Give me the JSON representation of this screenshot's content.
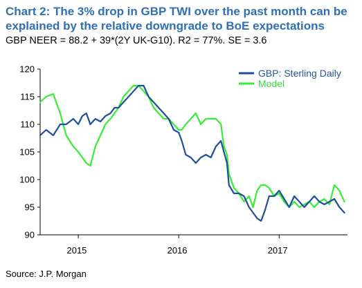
{
  "title": "Chart 2: The 3% drop in GBP TWI over the past month can be explained by the relative downgrade to BoE expectations",
  "subtitle": "GBP NEER = 88.2 + 39*(2Y UK-G10). R2 = 77%. SE = 3.6",
  "source": "Source: J.P. Morgan",
  "colors": {
    "sterling": "#1f4e9b",
    "model": "#33ee33",
    "legend_sterling_text": "#2453a4",
    "legend_model_text": "#33dd33"
  },
  "chart_data": {
    "type": "line",
    "xlabel": "",
    "ylabel": "",
    "ylim": [
      90,
      120
    ],
    "yticks": [
      "90",
      "95",
      "100",
      "105",
      "110",
      "115",
      "120"
    ],
    "xlim": [
      2014.62,
      2017.68
    ],
    "xticks": [
      {
        "label": "2015",
        "x": 2015.0
      },
      {
        "label": "2016",
        "x": 2016.0
      },
      {
        "label": "2017",
        "x": 2017.0
      }
    ],
    "grid": false,
    "legend_position": "top-right",
    "series": [
      {
        "name": "GBP: Sterling Daily",
        "x": [
          2014.62,
          2014.68,
          2014.75,
          2014.82,
          2014.88,
          2014.95,
          2015.0,
          2015.04,
          2015.08,
          2015.12,
          2015.17,
          2015.22,
          2015.27,
          2015.32,
          2015.36,
          2015.4,
          2015.45,
          2015.5,
          2015.55,
          2015.6,
          2015.65,
          2015.7,
          2015.75,
          2015.8,
          2015.85,
          2015.9,
          2015.95,
          2016.0,
          2016.03,
          2016.07,
          2016.12,
          2016.17,
          2016.22,
          2016.27,
          2016.32,
          2016.37,
          2016.42,
          2016.45,
          2016.48,
          2016.5,
          2016.55,
          2016.6,
          2016.65,
          2016.7,
          2016.74,
          2016.78,
          2016.82,
          2016.86,
          2016.9,
          2016.95,
          2017.0,
          2017.05,
          2017.1,
          2017.15,
          2017.2,
          2017.25,
          2017.3,
          2017.35,
          2017.4,
          2017.45,
          2017.5,
          2017.55,
          2017.6,
          2017.65
        ],
        "values": [
          108,
          109,
          108,
          110,
          110,
          111,
          110,
          111.5,
          112,
          110,
          111,
          110.5,
          111.5,
          112,
          113,
          113,
          114,
          115,
          116,
          117,
          117,
          115,
          114,
          113,
          112,
          111,
          109,
          108.5,
          107,
          104.5,
          104,
          103,
          104,
          104.5,
          104,
          106,
          107,
          105,
          103,
          99,
          97.5,
          97.5,
          97,
          95,
          94,
          93,
          92.5,
          94.5,
          97,
          97,
          98,
          96.5,
          95,
          97,
          96,
          95,
          96,
          97,
          96,
          95.5,
          96,
          96.5,
          95,
          94
        ]
      },
      {
        "name": "Model",
        "x": [
          2014.62,
          2014.68,
          2014.75,
          2014.82,
          2014.88,
          2014.95,
          2015.0,
          2015.04,
          2015.08,
          2015.12,
          2015.17,
          2015.22,
          2015.27,
          2015.32,
          2015.36,
          2015.4,
          2015.45,
          2015.5,
          2015.55,
          2015.6,
          2015.65,
          2015.7,
          2015.75,
          2015.8,
          2015.85,
          2015.9,
          2015.95,
          2016.0,
          2016.03,
          2016.07,
          2016.12,
          2016.17,
          2016.22,
          2016.27,
          2016.32,
          2016.37,
          2016.42,
          2016.45,
          2016.48,
          2016.5,
          2016.55,
          2016.6,
          2016.65,
          2016.7,
          2016.74,
          2016.78,
          2016.82,
          2016.86,
          2016.9,
          2016.95,
          2017.0,
          2017.05,
          2017.1,
          2017.15,
          2017.2,
          2017.25,
          2017.3,
          2017.35,
          2017.4,
          2017.45,
          2017.5,
          2017.55,
          2017.6,
          2017.65
        ],
        "values": [
          114,
          115,
          115.5,
          112,
          108,
          106,
          105,
          104,
          103,
          102.5,
          106,
          108,
          110,
          111,
          112,
          113,
          115,
          116,
          117,
          117,
          116,
          115,
          113,
          112,
          111,
          111,
          110,
          109,
          109,
          110,
          111,
          112,
          110,
          111,
          111,
          111,
          110,
          106,
          104.5,
          101,
          98.5,
          97.5,
          96,
          97,
          95,
          98,
          99,
          99,
          98.5,
          97,
          97.5,
          96,
          95,
          96,
          95,
          95.5,
          96,
          95,
          96,
          96.5,
          95.5,
          99,
          98,
          96
        ]
      }
    ]
  }
}
